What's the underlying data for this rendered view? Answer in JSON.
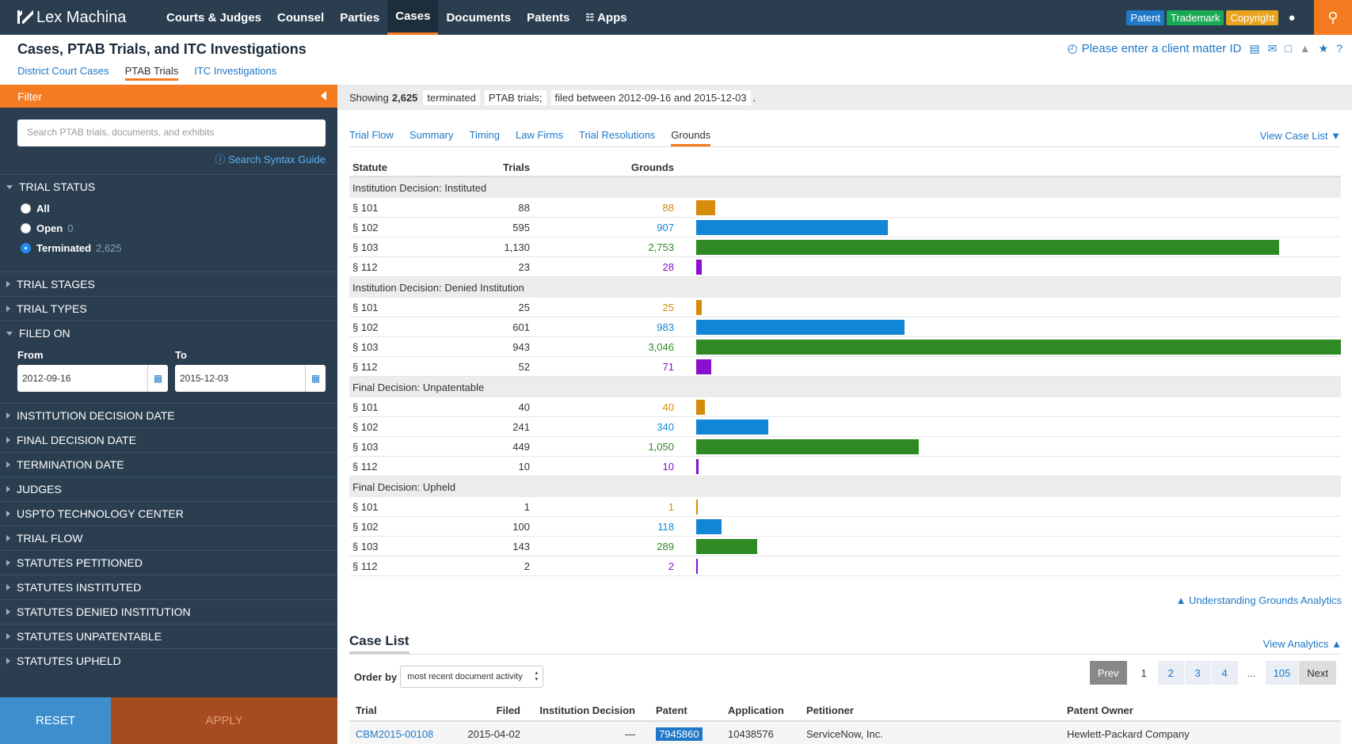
{
  "nav": {
    "logo": "Lex Machina",
    "links": [
      "Courts & Judges",
      "Counsel",
      "Parties",
      "Cases",
      "Documents",
      "Patents",
      "Apps"
    ],
    "active": "Cases",
    "badges": {
      "patent": "Patent",
      "trademark": "Trademark",
      "copyright": "Copyright"
    }
  },
  "header": {
    "title": "Cases, PTAB Trials, and ITC Investigations",
    "tabs": [
      "District Court Cases",
      "PTAB Trials",
      "ITC Investigations"
    ],
    "active_tab": "PTAB Trials",
    "client_matter": "Please enter a client matter ID"
  },
  "sidebar": {
    "filter_label": "Filter",
    "search_placeholder": "Search PTAB trials, documents, and exhibits",
    "syntax_guide": "Search Syntax Guide",
    "trial_status": {
      "label": "TRIAL STATUS",
      "options": [
        {
          "label": "All",
          "count": ""
        },
        {
          "label": "Open",
          "count": "0"
        },
        {
          "label": "Terminated",
          "count": "2,625"
        }
      ],
      "selected": "Terminated"
    },
    "trial_stages": "TRIAL STAGES",
    "trial_types": "TRIAL TYPES",
    "filed_on": {
      "label": "FILED ON",
      "from_label": "From",
      "to_label": "To",
      "from": "2012-09-16",
      "to": "2015-12-03"
    },
    "sections": [
      "INSTITUTION DECISION DATE",
      "FINAL DECISION DATE",
      "TERMINATION DATE",
      "JUDGES",
      "USPTO TECHNOLOGY CENTER",
      "TRIAL FLOW",
      "STATUTES PETITIONED",
      "STATUTES INSTITUTED",
      "STATUTES DENIED INSTITUTION",
      "STATUTES UNPATENTABLE",
      "STATUTES UPHELD"
    ],
    "reset": "RESET",
    "apply": "APPLY"
  },
  "summary": {
    "showing": "Showing",
    "count": "2,625",
    "status": "terminated",
    "type": "PTAB trials;",
    "filed": "filed between 2012-09-16 and 2015-12-03",
    "end": "."
  },
  "analytics_tabs": [
    "Trial Flow",
    "Summary",
    "Timing",
    "Law Firms",
    "Trial Resolutions",
    "Grounds"
  ],
  "active_analytics_tab": "Grounds",
  "view_case_list": "View Case List",
  "grounds": {
    "headers": {
      "statute": "Statute",
      "trials": "Trials",
      "grounds": "Grounds"
    },
    "max_grounds": 3046,
    "colors": {
      "§ 101": "#d48c0a",
      "§ 102": "#1186d6",
      "§ 103": "#2f8a26",
      "§ 112": "#8a0fd1"
    },
    "groups": [
      {
        "name": "Institution Decision: Instituted",
        "rows": [
          {
            "statute": "§ 101",
            "trials": "88",
            "grounds": "88",
            "value": 88
          },
          {
            "statute": "§ 102",
            "trials": "595",
            "grounds": "907",
            "value": 907
          },
          {
            "statute": "§ 103",
            "trials": "1,130",
            "grounds": "2,753",
            "value": 2753
          },
          {
            "statute": "§ 112",
            "trials": "23",
            "grounds": "28",
            "value": 28
          }
        ]
      },
      {
        "name": "Institution Decision: Denied Institution",
        "rows": [
          {
            "statute": "§ 101",
            "trials": "25",
            "grounds": "25",
            "value": 25
          },
          {
            "statute": "§ 102",
            "trials": "601",
            "grounds": "983",
            "value": 983
          },
          {
            "statute": "§ 103",
            "trials": "943",
            "grounds": "3,046",
            "value": 3046
          },
          {
            "statute": "§ 112",
            "trials": "52",
            "grounds": "71",
            "value": 71
          }
        ]
      },
      {
        "name": "Final Decision: Unpatentable",
        "rows": [
          {
            "statute": "§ 101",
            "trials": "40",
            "grounds": "40",
            "value": 40
          },
          {
            "statute": "§ 102",
            "trials": "241",
            "grounds": "340",
            "value": 340
          },
          {
            "statute": "§ 103",
            "trials": "449",
            "grounds": "1,050",
            "value": 1050
          },
          {
            "statute": "§ 112",
            "trials": "10",
            "grounds": "10",
            "value": 10
          }
        ]
      },
      {
        "name": "Final Decision: Upheld",
        "rows": [
          {
            "statute": "§ 101",
            "trials": "1",
            "grounds": "1",
            "value": 1
          },
          {
            "statute": "§ 102",
            "trials": "100",
            "grounds": "118",
            "value": 118
          },
          {
            "statute": "§ 103",
            "trials": "143",
            "grounds": "289",
            "value": 289
          },
          {
            "statute": "§ 112",
            "trials": "2",
            "grounds": "2",
            "value": 2
          }
        ]
      }
    ]
  },
  "understanding": "Understanding Grounds Analytics",
  "case_list": {
    "title": "Case List",
    "view_analytics": "View Analytics",
    "order_by_label": "Order by",
    "order_by_value": "most recent document activity",
    "pager": {
      "prev": "Prev",
      "pages": [
        "1",
        "2",
        "3",
        "4"
      ],
      "current": "1",
      "dots": "...",
      "last": "105",
      "next": "Next"
    },
    "headers": [
      "Trial",
      "Filed",
      "Institution Decision",
      "Patent",
      "Application",
      "Petitioner",
      "Patent Owner"
    ],
    "rows": [
      {
        "trial": "CBM2015-00108",
        "filed": "2015-04-02",
        "institution": "—",
        "patent": "7945860",
        "application": "10438576",
        "petitioner": "ServiceNow, Inc.",
        "owner": "Hewlett-Packard Company"
      }
    ]
  }
}
